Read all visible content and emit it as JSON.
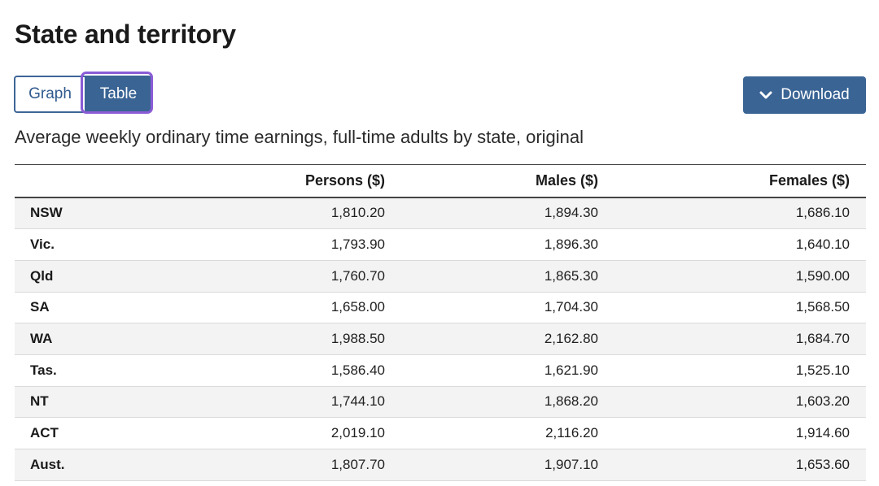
{
  "page": {
    "title": "State and territory"
  },
  "toggle": {
    "graph_label": "Graph",
    "table_label": "Table",
    "selected": "Table"
  },
  "download": {
    "label": "Download",
    "icon": "chevron-down-icon"
  },
  "caption": "Average weekly ordinary time earnings, full-time adults by state, original",
  "table": {
    "headers": [
      "",
      "Persons ($)",
      "Males ($)",
      "Females ($)"
    ],
    "rows": [
      [
        "NSW",
        "1,810.20",
        "1,894.30",
        "1,686.10"
      ],
      [
        "Vic.",
        "1,793.90",
        "1,896.30",
        "1,640.10"
      ],
      [
        "Qld",
        "1,760.70",
        "1,865.30",
        "1,590.00"
      ],
      [
        "SA",
        "1,658.00",
        "1,704.30",
        "1,568.50"
      ],
      [
        "WA",
        "1,988.50",
        "2,162.80",
        "1,684.70"
      ],
      [
        "Tas.",
        "1,586.40",
        "1,621.90",
        "1,525.10"
      ],
      [
        "NT",
        "1,744.10",
        "1,868.20",
        "1,603.20"
      ],
      [
        "ACT",
        "2,019.10",
        "2,116.20",
        "1,914.60"
      ],
      [
        "Aust.",
        "1,807.70",
        "1,907.10",
        "1,653.60"
      ]
    ]
  },
  "colors": {
    "accent": "#3a6494",
    "focus": "#8a5cd6",
    "stripe": "#f3f3f3"
  }
}
